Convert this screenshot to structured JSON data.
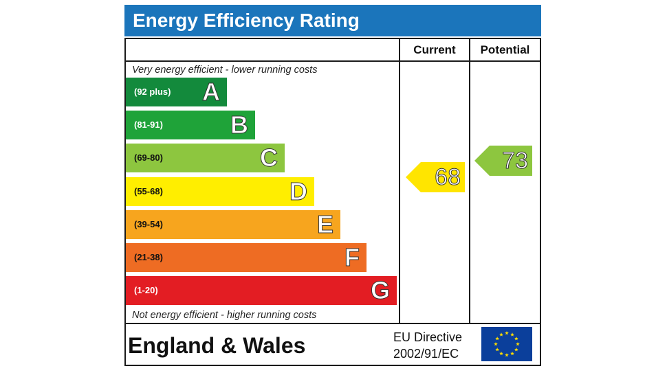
{
  "header": {
    "title": "Energy Efficiency Rating"
  },
  "columns": {
    "current": "Current",
    "potential": "Potential"
  },
  "notes": {
    "top": "Very energy efficient - lower running costs",
    "bottom": "Not energy efficient - higher running costs"
  },
  "chart_data": {
    "type": "bar",
    "title": "Energy Efficiency Rating",
    "categories": [
      "A",
      "B",
      "C",
      "D",
      "E",
      "F",
      "G"
    ],
    "bands": [
      {
        "letter": "A",
        "range": "(92 plus)",
        "color": "#138a3c",
        "range_color": "#ffffff"
      },
      {
        "letter": "B",
        "range": "(81-91)",
        "color": "#1fa339",
        "range_color": "#ffffff"
      },
      {
        "letter": "C",
        "range": "(69-80)",
        "color": "#8dc63f",
        "range_color": "#111111"
      },
      {
        "letter": "D",
        "range": "(55-68)",
        "color": "#ffee00",
        "range_color": "#111111"
      },
      {
        "letter": "E",
        "range": "(39-54)",
        "color": "#f7a51e",
        "range_color": "#111111"
      },
      {
        "letter": "F",
        "range": "(21-38)",
        "color": "#ee6c23",
        "range_color": "#111111"
      },
      {
        "letter": "G",
        "range": "(1-20)",
        "color": "#e31d23",
        "range_color": "#ffffff"
      }
    ],
    "current": {
      "value": "68",
      "band": "D",
      "color": "#ffe500"
    },
    "potential": {
      "value": "73",
      "band": "C",
      "color": "#8dc63f"
    }
  },
  "footer": {
    "region": "England & Wales",
    "directive_line1": "EU Directive",
    "directive_line2": "2002/91/EC",
    "flag_color": "#0b3f9b",
    "star_color": "#ffdd00"
  }
}
